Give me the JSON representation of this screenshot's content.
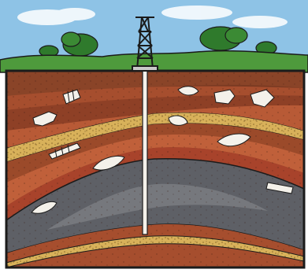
{
  "illustration": {
    "subject": "oil-well-cross-section",
    "elements": [
      "sky",
      "clouds",
      "trees",
      "grass-surface",
      "derrick",
      "drill-pipe",
      "rock-strata",
      "sandstone-bands",
      "fossils",
      "oil-reservoir"
    ],
    "colors": {
      "sky": "#8ec3e6",
      "cloud": "#ffffff",
      "grass": "#4e9a3c",
      "tree": "#2f7a2c",
      "soil_dark": "#7a3a22",
      "soil_mid": "#9b4a2a",
      "soil_light": "#b85a36",
      "rock_red": "#a8432b",
      "sand": "#d8b15a",
      "oil": "#5e6066",
      "oil_light": "#8a8c90",
      "fossil": "#f4f1ea",
      "outline": "#1b1b1b"
    }
  }
}
